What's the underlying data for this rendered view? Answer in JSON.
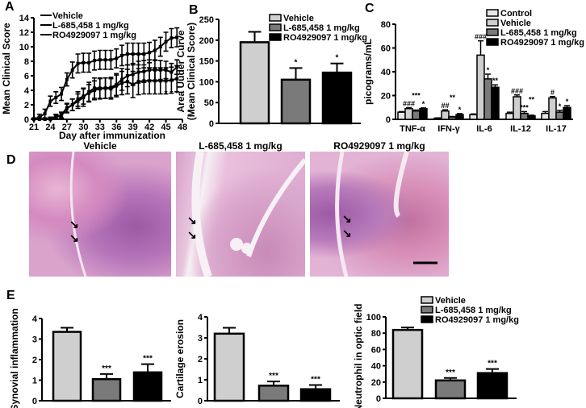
{
  "panel_labels": [
    "A",
    "B",
    "C",
    "D",
    "E"
  ],
  "histology": {
    "titles": [
      "Vehicle",
      "L-685,458 1 mg/kg",
      "RO4929097 1 mg/kg"
    ]
  },
  "colors": {
    "control": "#e6e6e6",
    "vehicle": "#cfcfcf",
    "l685": "#7a7a7a",
    "ro": "#000000"
  },
  "chart_data": [
    {
      "id": "A",
      "type": "line",
      "xlabel": "Day after immunization",
      "ylabel": "Mean Clinical Score",
      "xlim": [
        21,
        48
      ],
      "ylim": [
        0,
        14
      ],
      "xticks": [
        21,
        24,
        27,
        30,
        33,
        36,
        39,
        42,
        45,
        48
      ],
      "yticks": [
        0,
        2,
        4,
        6,
        8,
        10,
        12,
        14
      ],
      "legend": "top-left",
      "x": [
        21,
        22,
        23,
        24,
        25,
        26,
        27,
        28,
        29,
        30,
        31,
        32,
        33,
        34,
        35,
        36,
        37,
        38,
        39,
        40,
        41,
        42,
        43,
        44,
        45,
        46,
        47
      ],
      "series": [
        {
          "name": "Vehicle",
          "marker": "plus",
          "values": [
            0,
            0.3,
            0.8,
            2.5,
            3,
            3.5,
            5.5,
            6.8,
            7.7,
            7.8,
            7.8,
            8.1,
            8.2,
            8.2,
            8.2,
            8.4,
            8.8,
            9,
            9,
            9,
            9,
            9.2,
            9.5,
            10,
            10.7,
            11.2,
            11.3
          ],
          "err": [
            0.2,
            0.4,
            0.6,
            0.7,
            0.8,
            0.9,
            0.9,
            1.1,
            1.3,
            1.3,
            1.3,
            1.3,
            1.3,
            1.3,
            1.3,
            1.3,
            1.4,
            1.5,
            1.5,
            1.5,
            1.5,
            1.4,
            1.4,
            1.3,
            1.3,
            1.3,
            1.3
          ]
        },
        {
          "name": "L-685,458 1 mg/kg",
          "marker": "square",
          "values": [
            0,
            0.1,
            0,
            0,
            0.3,
            0.5,
            1.5,
            2,
            2.5,
            3,
            3.8,
            4.3,
            4.3,
            4.3,
            4.2,
            4.6,
            5,
            5.2,
            4.8,
            5.2,
            5.3,
            5.3,
            5.3,
            5.3,
            5.3,
            5.4,
            5.6
          ],
          "err": [
            0.1,
            0.2,
            0.1,
            0.1,
            0.3,
            0.4,
            0.6,
            0.8,
            1,
            1.2,
            1.3,
            1.4,
            1.4,
            1.4,
            1.4,
            1.5,
            1.6,
            1.7,
            1.8,
            1.8,
            1.8,
            1.8,
            1.8,
            1.8,
            1.8,
            1.8,
            1.8
          ]
        },
        {
          "name": "RO4929097 1 mg/kg",
          "marker": "triangle",
          "values": [
            0,
            0,
            0,
            0.1,
            0.4,
            0.6,
            1.6,
            2,
            2.8,
            3.2,
            3.6,
            4,
            4.2,
            4.3,
            4.4,
            4.8,
            5.5,
            6,
            6.2,
            6.5,
            6.6,
            6.8,
            6.8,
            6.8,
            6.8,
            6.5,
            7.2
          ],
          "err": [
            0.1,
            0.1,
            0.1,
            0.2,
            0.3,
            0.4,
            0.6,
            0.8,
            1,
            1.1,
            1.2,
            1.3,
            1.4,
            1.4,
            1.4,
            1.5,
            1.5,
            1.5,
            1.5,
            1.5,
            1.5,
            1.4,
            1.4,
            1.3,
            1.2,
            1.2,
            1
          ]
        }
      ],
      "annotations": [
        {
          "x": 45,
          "text": "*"
        },
        {
          "x": 46,
          "text": "*"
        },
        {
          "x": 47,
          "text": "*"
        }
      ]
    },
    {
      "id": "B",
      "type": "bar",
      "ylabel": "Area Uuder Curve (Mean Clinical Score)",
      "ylim": [
        0,
        250
      ],
      "yticks": [
        0,
        50,
        100,
        150,
        200,
        250
      ],
      "legend": "top-right",
      "categories": [
        "Vehicle",
        "L-685,458 1 mg/kg",
        "RO4929097 1 mg/kg"
      ],
      "values": [
        195,
        105,
        122
      ],
      "err": [
        25,
        28,
        22
      ],
      "sig": [
        "",
        "*",
        "*"
      ]
    },
    {
      "id": "C",
      "type": "bar",
      "ylabel": "picograms/mL",
      "ylim": [
        0,
        80
      ],
      "yticks": [
        0,
        20,
        40,
        60,
        80
      ],
      "legend": "top-right",
      "categories": [
        "TNF-α",
        "IFN-γ",
        "IL-6",
        "IL-12",
        "IL-17"
      ],
      "series": [
        {
          "name": "Control",
          "values": [
            6,
            1,
            4,
            5,
            5
          ],
          "err": [
            0.5,
            0.2,
            0.5,
            1,
            1.5
          ]
        },
        {
          "name": "Vehicle",
          "values": [
            9,
            7,
            54,
            19,
            18
          ],
          "err": [
            0.8,
            1,
            12,
            1.5,
            1.2
          ]
        },
        {
          "name": "L-685,458 1 mg/kg",
          "values": [
            7,
            2,
            34,
            5,
            6
          ],
          "err": [
            0.8,
            0.4,
            4,
            1.5,
            1.5
          ]
        },
        {
          "name": "RO4929097 1 mg/kg",
          "values": [
            9,
            4,
            27,
            3,
            10
          ],
          "err": [
            0.6,
            0.8,
            2,
            0.5,
            1.5
          ]
        }
      ],
      "sig": [
        [
          "",
          "###",
          "***",
          "*"
        ],
        [
          "",
          "##",
          "**",
          "*"
        ],
        [
          "",
          "###",
          "*",
          "**"
        ],
        [
          "",
          "###",
          "***",
          "**"
        ],
        [
          "",
          "#",
          "*",
          "*"
        ]
      ]
    },
    {
      "id": "E1",
      "type": "bar",
      "ylabel": "Synovial inflammation",
      "ylim": [
        0,
        4
      ],
      "yticks": [
        0,
        1,
        2,
        3,
        4
      ],
      "categories": [
        "Vehicle",
        "L-685,458 1 mg/kg",
        "RO4929097 1 mg/kg"
      ],
      "values": [
        3.35,
        1.05,
        1.38
      ],
      "err": [
        0.2,
        0.25,
        0.4
      ],
      "sig": [
        "",
        "***",
        "***"
      ]
    },
    {
      "id": "E2",
      "type": "bar",
      "ylabel": "Cartilage erosion",
      "ylim": [
        0,
        4
      ],
      "yticks": [
        0,
        1,
        2,
        3,
        4
      ],
      "categories": [
        "Vehicle",
        "L-685,458 1 mg/kg",
        "RO4929097 1 mg/kg"
      ],
      "values": [
        3.2,
        0.72,
        0.55
      ],
      "err": [
        0.28,
        0.2,
        0.2
      ],
      "sig": [
        "",
        "***",
        "***"
      ]
    },
    {
      "id": "E3",
      "type": "bar",
      "ylabel": "Neutrophil in optic field",
      "ylim": [
        0,
        100
      ],
      "yticks": [
        0,
        20,
        40,
        60,
        80,
        100
      ],
      "legend": "top-right",
      "categories": [
        "Vehicle",
        "L-685,458 1 mg/kg",
        "RO4929097 1 mg/kg"
      ],
      "values": [
        84,
        22,
        31
      ],
      "err": [
        3,
        3,
        5
      ],
      "sig": [
        "",
        "***",
        "***"
      ]
    }
  ]
}
